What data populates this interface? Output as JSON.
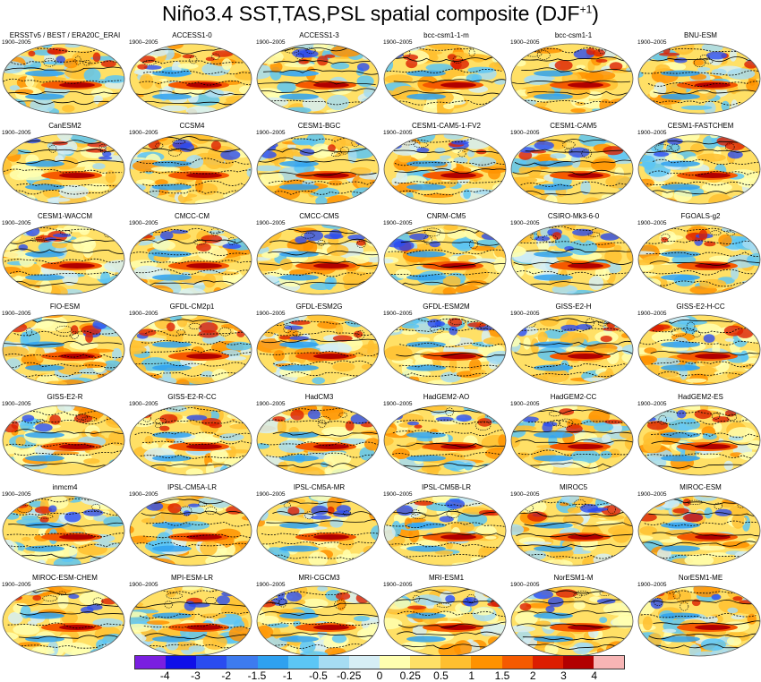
{
  "title": "Niño3.4 SST,TAS,PSL spatial composite (DJF",
  "title_sup": "+1",
  "period": "1900–2005",
  "chart_data": {
    "type": "heatmap",
    "title": "Niño3.4 SST,TAS,PSL spatial composite (DJF+1)",
    "panels": [
      "ERSSTv5 / BEST / ERA20C_ERAI",
      "ACCESS1-0",
      "ACCESS1-3",
      "bcc-csm1-1-m",
      "bcc-csm1-1",
      "BNU-ESM",
      "CanESM2",
      "CCSM4",
      "CESM1-BGC",
      "CESM1-CAM5-1-FV2",
      "CESM1-CAM5",
      "CESM1-FASTCHEM",
      "CESM1-WACCM",
      "CMCC-CM",
      "CMCC-CMS",
      "CNRM-CM5",
      "CSIRO-Mk3-6-0",
      "FGOALS-g2",
      "FIO-ESM",
      "GFDL-CM2p1",
      "GFDL-ESM2G",
      "GFDL-ESM2M",
      "GISS-E2-H",
      "GISS-E2-H-CC",
      "GISS-E2-R",
      "GISS-E2-R-CC",
      "HadCM3",
      "HadGEM2-AO",
      "HadGEM2-CC",
      "HadGEM2-ES",
      "inmcm4",
      "IPSL-CM5A-LR",
      "IPSL-CM5A-MR",
      "IPSL-CM5B-LR",
      "MIROC5",
      "MIROC-ESM",
      "MIROC-ESM-CHEM",
      "MPI-ESM-LR",
      "MRI-CGCM3",
      "MRI-ESM1",
      "NorESM1-M",
      "NorESM1-ME"
    ],
    "colorbar": {
      "levels": [
        "-4",
        "-3",
        "-2",
        "-1.5",
        "-1",
        "-0.5",
        "-0.25",
        "0",
        "0.25",
        "0.5",
        "1",
        "1.5",
        "2",
        "3",
        "4"
      ],
      "colors": [
        "#7a1fe0",
        "#1010e8",
        "#2a4cf0",
        "#3d7bef",
        "#2ea1f0",
        "#5cc6f5",
        "#a6dcf2",
        "#d6eef5",
        "#ffffb0",
        "#ffe066",
        "#ffbf30",
        "#ff9200",
        "#f55a00",
        "#dc1e00",
        "#b20000",
        "#f7b5b5"
      ]
    }
  }
}
